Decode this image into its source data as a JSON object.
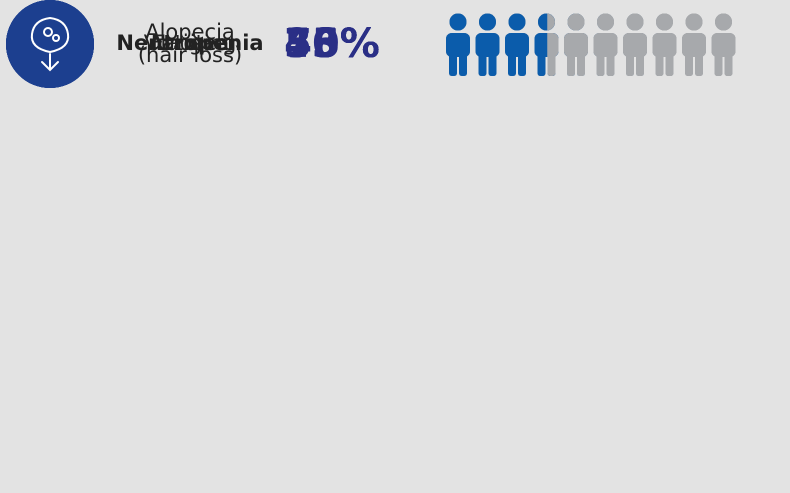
{
  "chart_data": {
    "type": "pictogram",
    "categories": [
      "Nausea",
      "Fatigue",
      "Alopecia\n(hair loss)",
      "Vomiting",
      "Neutropenia"
    ],
    "values": [
      73,
      53,
      46,
      40,
      35
    ],
    "value_labels": [
      "73%",
      "53%",
      "46%",
      "40%",
      "35%"
    ],
    "ylim": [
      0,
      100
    ],
    "color": "#0b5cab",
    "empty_color": "#a7a9ac"
  }
}
